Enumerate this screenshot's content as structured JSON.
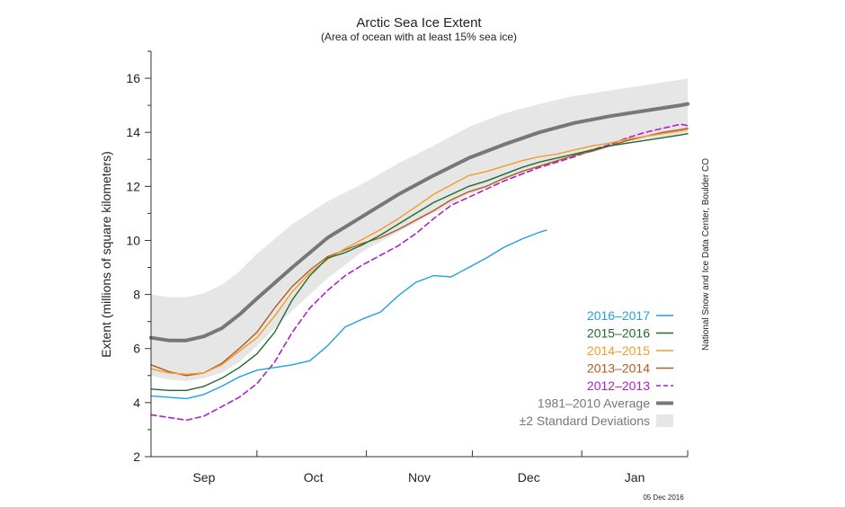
{
  "chart_data": {
    "type": "line",
    "title": "Arctic Sea Ice Extent",
    "subtitle": "(Area of ocean with at least 15% sea ice)",
    "ylabel": "Extent (millions of square kilometers)",
    "xlabel": "",
    "ylim": [
      2,
      17
    ],
    "yticks": [
      2,
      4,
      6,
      8,
      10,
      12,
      14,
      16
    ],
    "x_unit": "day index from 15 Aug (2016-17 season)",
    "xlim": [
      0,
      152
    ],
    "xtick_boundaries": [
      0,
      30,
      61,
      91,
      122
    ],
    "month_labels": [
      {
        "label": "Sep",
        "x": 15
      },
      {
        "label": "Oct",
        "x": 46
      },
      {
        "label": "Nov",
        "x": 76
      },
      {
        "label": "Dec",
        "x": 107
      },
      {
        "label": "Jan",
        "x": 137
      }
    ],
    "grid": false,
    "legend_position": "bottom-right",
    "credit": "National Snow and Ice Data Center, Boulder CO",
    "date_label": "05 Dec 2016",
    "std_band": {
      "name": "±2 Standard Deviations",
      "color": "#e6e6e6",
      "x": [
        0,
        5,
        10,
        15,
        20,
        25,
        30,
        40,
        50,
        60,
        70,
        80,
        90,
        100,
        110,
        120,
        130,
        140,
        150,
        152
      ],
      "upper": [
        8.0,
        7.9,
        7.9,
        8.05,
        8.35,
        8.85,
        9.5,
        10.6,
        11.45,
        12.1,
        12.85,
        13.5,
        14.2,
        14.7,
        15.05,
        15.35,
        15.55,
        15.75,
        15.95,
        16.0
      ],
      "lower": [
        5.0,
        4.85,
        4.8,
        4.9,
        5.1,
        5.5,
        6.1,
        7.4,
        8.6,
        9.6,
        10.3,
        11.0,
        11.7,
        12.2,
        12.7,
        13.2,
        13.5,
        13.75,
        13.9,
        13.95
      ]
    },
    "series": [
      {
        "name": "1981–2010 Average",
        "color": "#777777",
        "width": 4,
        "dash": false,
        "x": [
          0,
          5,
          10,
          15,
          20,
          25,
          30,
          40,
          50,
          60,
          70,
          80,
          90,
          100,
          110,
          120,
          130,
          140,
          150,
          152
        ],
        "y": [
          6.4,
          6.3,
          6.3,
          6.45,
          6.75,
          7.25,
          7.85,
          9.0,
          10.1,
          10.9,
          11.7,
          12.4,
          13.05,
          13.55,
          14.0,
          14.35,
          14.6,
          14.8,
          15.0,
          15.05
        ]
      },
      {
        "name": "2012–2013",
        "color": "#aa22cc",
        "width": 1.6,
        "dash": true,
        "x": [
          0,
          5,
          10,
          15,
          20,
          25,
          30,
          35,
          40,
          45,
          50,
          55,
          60,
          65,
          70,
          75,
          80,
          85,
          90,
          95,
          100,
          105,
          110,
          115,
          120,
          125,
          130,
          135,
          140,
          145,
          150,
          152
        ],
        "y": [
          3.55,
          3.45,
          3.35,
          3.5,
          3.85,
          4.2,
          4.7,
          5.5,
          6.6,
          7.5,
          8.15,
          8.7,
          9.1,
          9.45,
          9.8,
          10.25,
          10.8,
          11.3,
          11.6,
          11.9,
          12.2,
          12.45,
          12.7,
          12.9,
          13.1,
          13.35,
          13.55,
          13.8,
          14.0,
          14.15,
          14.3,
          14.25
        ]
      },
      {
        "name": "2013–2014",
        "color": "#b35a1f",
        "width": 1.4,
        "dash": false,
        "x": [
          0,
          5,
          10,
          15,
          20,
          25,
          30,
          35,
          40,
          45,
          50,
          55,
          60,
          65,
          70,
          75,
          80,
          85,
          90,
          95,
          100,
          105,
          110,
          115,
          120,
          125,
          130,
          135,
          140,
          145,
          150,
          152
        ],
        "y": [
          5.4,
          5.15,
          5.0,
          5.1,
          5.45,
          6.0,
          6.6,
          7.5,
          8.3,
          8.9,
          9.4,
          9.65,
          9.9,
          10.1,
          10.4,
          10.75,
          11.1,
          11.5,
          11.8,
          12.0,
          12.3,
          12.55,
          12.75,
          12.95,
          13.15,
          13.3,
          13.5,
          13.7,
          13.85,
          14.0,
          14.1,
          14.15
        ]
      },
      {
        "name": "2014–2015",
        "color": "#f39c2a",
        "width": 1.4,
        "dash": false,
        "x": [
          0,
          5,
          10,
          15,
          20,
          25,
          30,
          35,
          40,
          45,
          50,
          55,
          60,
          65,
          70,
          75,
          80,
          85,
          90,
          95,
          100,
          105,
          110,
          115,
          120,
          125,
          130,
          135,
          140,
          145,
          150,
          152
        ],
        "y": [
          5.25,
          5.1,
          5.05,
          5.1,
          5.4,
          5.9,
          6.4,
          7.2,
          8.1,
          8.8,
          9.3,
          9.7,
          10.05,
          10.4,
          10.8,
          11.25,
          11.7,
          12.05,
          12.4,
          12.55,
          12.75,
          12.95,
          13.1,
          13.2,
          13.35,
          13.5,
          13.6,
          13.75,
          13.85,
          13.95,
          14.05,
          14.1
        ]
      },
      {
        "name": "2015–2016",
        "color": "#1f6b2e",
        "width": 1.4,
        "dash": false,
        "x": [
          0,
          5,
          10,
          15,
          20,
          25,
          30,
          35,
          40,
          45,
          50,
          55,
          60,
          65,
          70,
          75,
          80,
          85,
          90,
          95,
          100,
          105,
          110,
          115,
          120,
          125,
          130,
          135,
          140,
          145,
          150,
          152
        ],
        "y": [
          4.5,
          4.45,
          4.45,
          4.6,
          4.9,
          5.3,
          5.8,
          6.6,
          7.8,
          8.7,
          9.35,
          9.55,
          9.85,
          10.2,
          10.6,
          11.0,
          11.4,
          11.7,
          12.0,
          12.2,
          12.45,
          12.7,
          12.9,
          13.05,
          13.2,
          13.35,
          13.5,
          13.6,
          13.7,
          13.8,
          13.9,
          13.95
        ]
      },
      {
        "name": "2016–2017",
        "color": "#1fa2dc",
        "width": 1.4,
        "dash": false,
        "x": [
          0,
          5,
          10,
          15,
          20,
          25,
          30,
          35,
          40,
          45,
          50,
          55,
          60,
          65,
          70,
          75,
          80,
          85,
          90,
          95,
          100,
          105,
          110,
          112
        ],
        "y": [
          4.25,
          4.2,
          4.15,
          4.3,
          4.6,
          4.95,
          5.2,
          5.3,
          5.4,
          5.55,
          6.1,
          6.8,
          7.1,
          7.35,
          7.95,
          8.45,
          8.7,
          8.65,
          9.0,
          9.35,
          9.75,
          10.05,
          10.3,
          10.38
        ]
      }
    ],
    "legend": [
      {
        "label": "2016–2017",
        "color": "#1fa2dc",
        "kind": "line"
      },
      {
        "label": "2015–2016",
        "color": "#1f6b2e",
        "kind": "line"
      },
      {
        "label": "2014–2015",
        "color": "#f39c2a",
        "kind": "line"
      },
      {
        "label": "2013–2014",
        "color": "#b35a1f",
        "kind": "line"
      },
      {
        "label": "2012–2013",
        "color": "#aa22cc",
        "kind": "dash"
      },
      {
        "label": "1981–2010 Average",
        "color": "#777777",
        "kind": "thick"
      },
      {
        "label": "±2 Standard Deviations",
        "color": "#e6e6e6",
        "kind": "box"
      }
    ]
  }
}
